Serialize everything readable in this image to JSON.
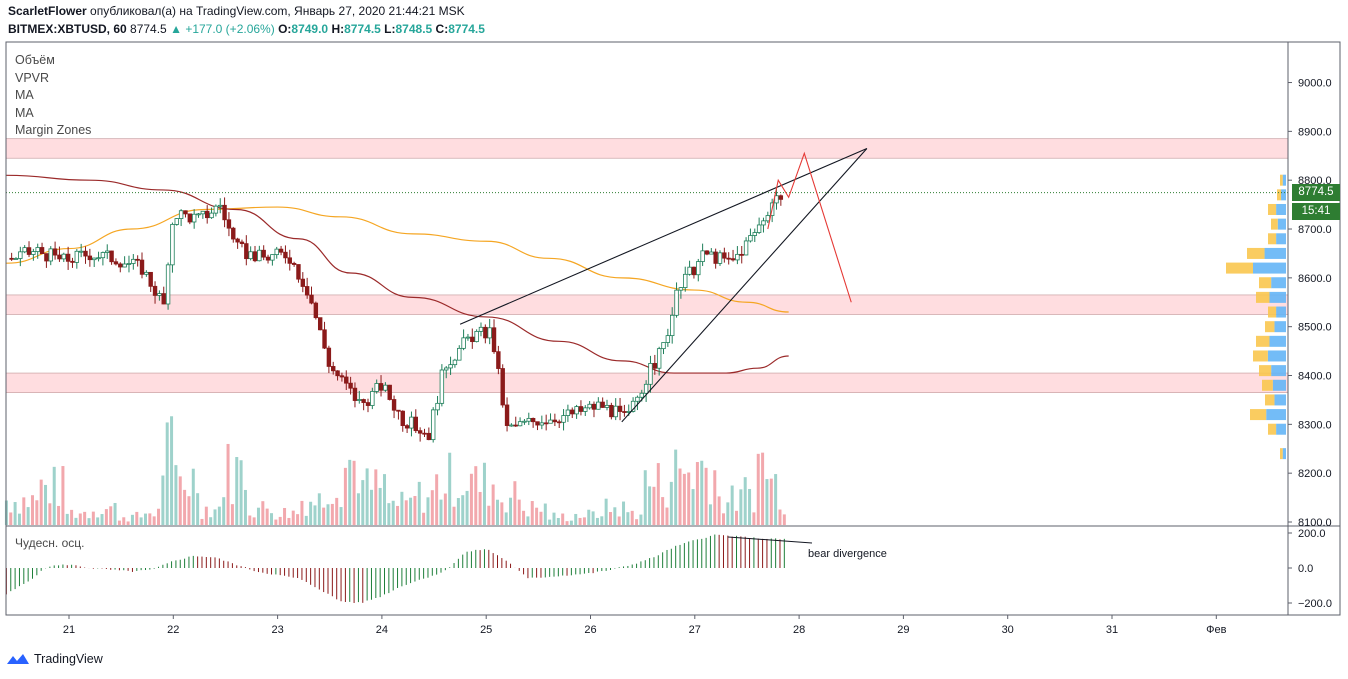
{
  "header": {
    "user": "ScarletFlower",
    "published_text": "опубликовал(а) на TradingView.com, Январь 27, 2020 21:44:21 MSK",
    "symbol": "BITMEX:XBTUSD, 60",
    "last": "8774.5",
    "change": "+177.0 (+2.06%)",
    "o_label": "O:",
    "o_value": "8749.0",
    "h_label": "H:",
    "h_value": "8774.5",
    "l_label": "L:",
    "l_value": "8748.5",
    "c_label": "C:",
    "c_value": "8774.5"
  },
  "indicators": [
    "Объём",
    "VPVR",
    "MA",
    "MA",
    "Margin Zones"
  ],
  "price_tag": {
    "value": "8774.5",
    "countdown": "15:41",
    "color": "#2e7d32"
  },
  "oscillator": {
    "label": "Чудесн. осц.",
    "annotation": "bear divergence"
  },
  "branding": {
    "name": "TradingView"
  },
  "colors": {
    "up": "#26a69a",
    "down": "#8b1a1a",
    "zone": "#ffdde0",
    "ma_fast": "#f5a623",
    "ma_slow": "#9b2a2a",
    "projection": "#e53935"
  },
  "chart_data": [
    {
      "type": "candlestick",
      "title": "BITMEX:XBTUSD, 60",
      "x_ticks": [
        "21",
        "22",
        "23",
        "24",
        "25",
        "26",
        "27",
        "28",
        "29",
        "30",
        "31",
        "Фев"
      ],
      "y_ticks": [
        8100,
        8200,
        8300,
        8400,
        8500,
        8600,
        8700,
        8800,
        8900,
        9000
      ],
      "y_tick_labels": [
        "8100.0",
        "8200.0",
        "8300.0",
        "8400.0",
        "8500.0",
        "8600.0",
        "8700.0",
        "8800.0",
        "8900.0",
        "9000.0"
      ],
      "ylim": [
        8090,
        9085
      ],
      "xlim": [
        20.4,
        22.8
      ],
      "x_unit_note": "Jan 2020 day-of-month, fractional hours",
      "closes": [
        {
          "t": 20.45,
          "c": 8640
        },
        {
          "t": 20.7,
          "c": 8655
        },
        {
          "t": 20.95,
          "c": 8635
        },
        {
          "t": 21.2,
          "c": 8650
        },
        {
          "t": 21.45,
          "c": 8640
        },
        {
          "t": 21.7,
          "c": 8620
        },
        {
          "t": 21.92,
          "c": 8540
        },
        {
          "t": 22.0,
          "c": 8735
        },
        {
          "t": 22.25,
          "c": 8720
        },
        {
          "t": 22.45,
          "c": 8750
        },
        {
          "t": 22.6,
          "c": 8660
        },
        {
          "t": 22.85,
          "c": 8640
        },
        {
          "t": 23.1,
          "c": 8650
        },
        {
          "t": 23.3,
          "c": 8570
        },
        {
          "t": 23.5,
          "c": 8420
        },
        {
          "t": 23.8,
          "c": 8340
        },
        {
          "t": 24.0,
          "c": 8380
        },
        {
          "t": 24.2,
          "c": 8310
        },
        {
          "t": 24.45,
          "c": 8280
        },
        {
          "t": 24.6,
          "c": 8420
        },
        {
          "t": 24.85,
          "c": 8480
        },
        {
          "t": 25.05,
          "c": 8490
        },
        {
          "t": 25.2,
          "c": 8290
        },
        {
          "t": 25.5,
          "c": 8310
        },
        {
          "t": 25.8,
          "c": 8320
        },
        {
          "t": 26.1,
          "c": 8340
        },
        {
          "t": 26.35,
          "c": 8310
        },
        {
          "t": 26.5,
          "c": 8380
        },
        {
          "t": 26.7,
          "c": 8460
        },
        {
          "t": 26.85,
          "c": 8580
        },
        {
          "t": 27.1,
          "c": 8650
        },
        {
          "t": 27.35,
          "c": 8630
        },
        {
          "t": 27.6,
          "c": 8700
        },
        {
          "t": 27.75,
          "c": 8760
        },
        {
          "t": 27.85,
          "c": 8774.5
        }
      ],
      "moving_averages": [
        {
          "name": "MA",
          "color": "#f5a623",
          "points": [
            {
              "t": 20.4,
              "c": 8630
            },
            {
              "t": 21.0,
              "c": 8660
            },
            {
              "t": 21.6,
              "c": 8700
            },
            {
              "t": 22.3,
              "c": 8740
            },
            {
              "t": 23.0,
              "c": 8745
            },
            {
              "t": 23.6,
              "c": 8725
            },
            {
              "t": 24.3,
              "c": 8690
            },
            {
              "t": 25.0,
              "c": 8675
            },
            {
              "t": 25.6,
              "c": 8640
            },
            {
              "t": 26.3,
              "c": 8600
            },
            {
              "t": 27.0,
              "c": 8575
            },
            {
              "t": 27.5,
              "c": 8550
            },
            {
              "t": 27.9,
              "c": 8530
            }
          ]
        },
        {
          "name": "MA",
          "color": "#9b2a2a",
          "points": [
            {
              "t": 20.4,
              "c": 8810
            },
            {
              "t": 21.2,
              "c": 8800
            },
            {
              "t": 21.9,
              "c": 8780
            },
            {
              "t": 22.6,
              "c": 8740
            },
            {
              "t": 23.2,
              "c": 8680
            },
            {
              "t": 23.7,
              "c": 8610
            },
            {
              "t": 24.3,
              "c": 8560
            },
            {
              "t": 25.0,
              "c": 8520
            },
            {
              "t": 25.7,
              "c": 8470
            },
            {
              "t": 26.3,
              "c": 8430
            },
            {
              "t": 26.8,
              "c": 8405
            },
            {
              "t": 27.3,
              "c": 8405
            },
            {
              "t": 27.6,
              "c": 8415
            },
            {
              "t": 27.9,
              "c": 8440
            }
          ]
        }
      ],
      "margin_zones": [
        {
          "from": 8845,
          "to": 8885
        },
        {
          "from": 8525,
          "to": 8565
        },
        {
          "from": 8365,
          "to": 8405
        }
      ],
      "last_price": 8774.5,
      "wedge_lines": [
        {
          "from": {
            "t": 24.75,
            "c": 8505
          },
          "to": {
            "t": 28.65,
            "c": 8865
          }
        },
        {
          "from": {
            "t": 26.3,
            "c": 8305
          },
          "to": {
            "t": 28.65,
            "c": 8865
          }
        }
      ],
      "projection": [
        {
          "t": 27.7,
          "c": 8700
        },
        {
          "t": 27.8,
          "c": 8800
        },
        {
          "t": 27.9,
          "c": 8765
        },
        {
          "t": 28.05,
          "c": 8855
        },
        {
          "t": 28.5,
          "c": 8550
        }
      ]
    },
    {
      "type": "bar",
      "title": "Объём",
      "values_note": "relative volume levels 0-1",
      "x": [
        20.45,
        20.7,
        20.95,
        21.2,
        21.45,
        21.7,
        21.9,
        22.0,
        22.25,
        22.45,
        22.7,
        22.95,
        23.2,
        23.45,
        23.65,
        23.8,
        24.05,
        24.3,
        24.5,
        24.65,
        24.9,
        25.1,
        25.35,
        25.6,
        25.85,
        26.1,
        26.35,
        26.5,
        26.75,
        27.0,
        27.2,
        27.45,
        27.6,
        27.7,
        27.85
      ],
      "values": [
        0.3,
        0.45,
        0.15,
        0.2,
        0.1,
        0.15,
        0.85,
        0.55,
        0.2,
        0.65,
        0.2,
        0.15,
        0.3,
        0.55,
        0.75,
        0.45,
        0.25,
        0.35,
        0.5,
        0.55,
        0.5,
        0.35,
        0.2,
        0.1,
        0.12,
        0.2,
        0.15,
        0.5,
        0.65,
        0.7,
        0.3,
        0.4,
        0.75,
        0.5,
        0.25
      ]
    },
    {
      "type": "bar",
      "title": "Чудесн. осц.",
      "y_tick_labels": [
        "200.0",
        "0.0",
        "−200.0"
      ],
      "ylim": [
        -230,
        230
      ],
      "x": [
        20.4,
        20.6,
        20.8,
        21.0,
        21.2,
        21.4,
        21.6,
        21.8,
        22.0,
        22.2,
        22.4,
        22.6,
        22.8,
        23.0,
        23.2,
        23.4,
        23.6,
        23.8,
        24.0,
        24.2,
        24.4,
        24.6,
        24.8,
        25.0,
        25.2,
        25.4,
        25.6,
        25.8,
        26.0,
        26.2,
        26.4,
        26.6,
        26.8,
        27.0,
        27.2,
        27.4,
        27.6,
        27.8
      ],
      "values": [
        -150,
        -80,
        10,
        20,
        0,
        -10,
        -20,
        -10,
        40,
        70,
        60,
        20,
        -20,
        -40,
        -60,
        -120,
        -190,
        -200,
        -160,
        -100,
        -60,
        -20,
        90,
        110,
        40,
        -60,
        -50,
        -40,
        -30,
        -10,
        20,
        60,
        120,
        160,
        190,
        180,
        170,
        165
      ]
    },
    {
      "type": "bar",
      "title": "VPVR",
      "orientation": "horizontal",
      "y_price": [
        8240,
        8290,
        8320,
        8350,
        8380,
        8410,
        8440,
        8470,
        8500,
        8530,
        8560,
        8590,
        8620,
        8650,
        8680,
        8710,
        8740,
        8770,
        8800
      ],
      "values": [
        0.1,
        0.3,
        0.6,
        0.35,
        0.4,
        0.45,
        0.55,
        0.5,
        0.35,
        0.3,
        0.5,
        0.45,
        1.0,
        0.65,
        0.3,
        0.25,
        0.3,
        0.15,
        0.1
      ]
    }
  ]
}
